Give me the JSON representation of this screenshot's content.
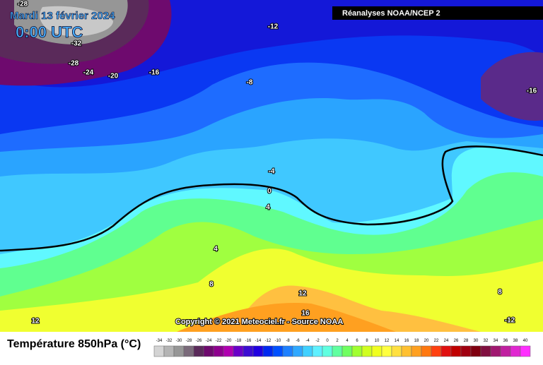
{
  "header": {
    "date": "Mardi 13 février 2024",
    "time": "0:00 UTC",
    "source": "Réanalyses NOAA/NCEP 2"
  },
  "contour_labels": [
    -28,
    -12,
    -32,
    -28,
    -24,
    -20,
    -16,
    -8,
    -16,
    -4,
    0,
    4,
    4,
    8,
    12,
    16,
    8,
    12,
    -12
  ],
  "copyright": "Copyright © 2021 Meteociel.fr - Source NOAA",
  "legend": {
    "title": "Température 850hPa (°C)",
    "values": [
      -34,
      -32,
      -30,
      -28,
      -26,
      -24,
      -22,
      -20,
      -18,
      -16,
      -14,
      -12,
      -10,
      -8,
      -6,
      -4,
      -2,
      0,
      2,
      4,
      6,
      8,
      10,
      12,
      14,
      16,
      18,
      20,
      22,
      24,
      26,
      28,
      30,
      32,
      34,
      36,
      38,
      40
    ],
    "colors": [
      "#d4d4d4",
      "#b4b4b4",
      "#969696",
      "#7a6a7a",
      "#5a2a5a",
      "#6e0a6e",
      "#8e008e",
      "#b000b0",
      "#6a00c8",
      "#3c0cd2",
      "#2000e0",
      "#0028f0",
      "#0050ff",
      "#1e80ff",
      "#30a8ff",
      "#40d0ff",
      "#5ef0ff",
      "#60ffe0",
      "#60ffa0",
      "#70ff60",
      "#a0ff30",
      "#d0ff20",
      "#f0ff20",
      "#ffff40",
      "#ffe040",
      "#ffc030",
      "#ffa020",
      "#ff7810",
      "#ff4010",
      "#e01010",
      "#c00000",
      "#a00010",
      "#800010",
      "#801040",
      "#a01870",
      "#c020a0",
      "#e028d0",
      "#ff30ff"
    ]
  }
}
